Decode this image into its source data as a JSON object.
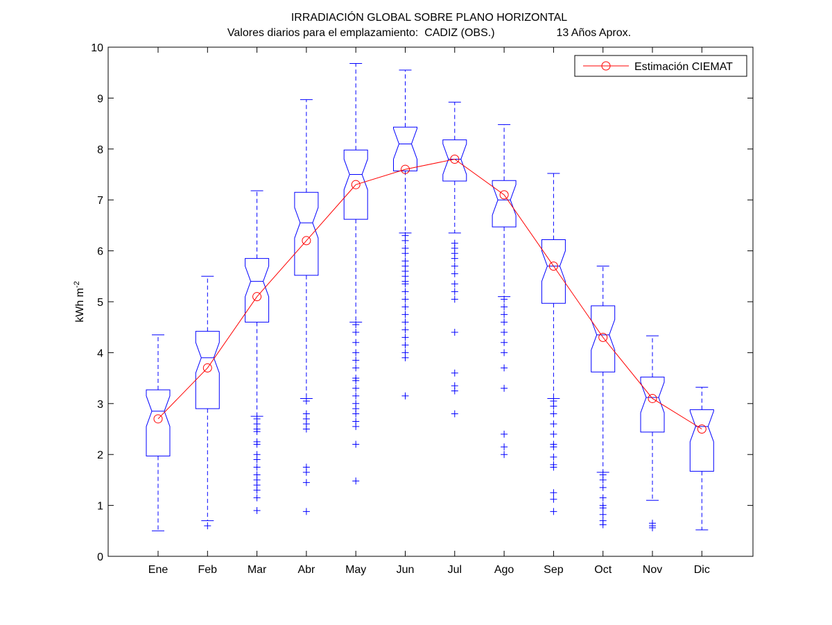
{
  "chart_data": {
    "type": "boxplot",
    "title": "IRRADIACIÓN GLOBAL SOBRE PLANO HORIZONTAL",
    "subtitle": "Valores diarios para el emplazamiento:  CADIZ (OBS.)                    13 Años Aprox.",
    "ylabel": "kWh m",
    "ylabel_superscript": "-2",
    "xlabel": "",
    "ylim": [
      0,
      10
    ],
    "yticks": [
      0,
      1,
      2,
      3,
      4,
      5,
      6,
      7,
      8,
      9,
      10
    ],
    "grid": false,
    "legend_position": "top-right",
    "categories": [
      "Ene",
      "Feb",
      "Mar",
      "Abr",
      "May",
      "Jun",
      "Jul",
      "Ago",
      "Sep",
      "Oct",
      "Nov",
      "Dic"
    ],
    "boxes": [
      {
        "whisker_low": 0.5,
        "q1": 1.97,
        "median": 2.85,
        "q3": 3.27,
        "whisker_high": 4.35,
        "outliers": []
      },
      {
        "whisker_low": 0.7,
        "q1": 2.9,
        "median": 3.9,
        "q3": 4.42,
        "whisker_high": 5.5,
        "outliers": [
          0.6
        ]
      },
      {
        "whisker_low": 2.75,
        "q1": 4.6,
        "median": 5.4,
        "q3": 5.85,
        "whisker_high": 7.18,
        "outliers": [
          2.7,
          2.6,
          2.5,
          2.45,
          2.25,
          2.2,
          2.0,
          1.9,
          1.75,
          1.6,
          1.5,
          1.4,
          1.3,
          1.15,
          0.9
        ]
      },
      {
        "whisker_low": 3.1,
        "q1": 5.52,
        "median": 6.55,
        "q3": 7.15,
        "whisker_high": 8.97,
        "outliers": [
          3.05,
          2.8,
          2.7,
          2.6,
          2.5,
          1.75,
          1.65,
          1.45,
          0.88
        ]
      },
      {
        "whisker_low": 4.6,
        "q1": 6.62,
        "median": 7.5,
        "q3": 7.98,
        "whisker_high": 9.68,
        "outliers": [
          4.55,
          4.4,
          4.2,
          4.0,
          3.85,
          3.7,
          3.5,
          3.45,
          3.3,
          3.15,
          3.0,
          2.9,
          2.8,
          2.65,
          2.55,
          2.2,
          1.48
        ]
      },
      {
        "whisker_low": 6.35,
        "q1": 7.57,
        "median": 8.1,
        "q3": 8.43,
        "whisker_high": 9.55,
        "outliers": [
          6.3,
          6.2,
          6.05,
          5.95,
          5.8,
          5.7,
          5.6,
          5.5,
          5.4,
          5.35,
          5.2,
          5.05,
          4.9,
          4.75,
          4.6,
          4.45,
          4.3,
          4.15,
          4.0,
          3.9,
          3.15
        ]
      },
      {
        "whisker_low": 6.35,
        "q1": 7.37,
        "median": 7.8,
        "q3": 8.18,
        "whisker_high": 8.92,
        "outliers": [
          6.15,
          6.05,
          5.95,
          5.85,
          5.7,
          5.55,
          5.35,
          5.2,
          5.05,
          4.4,
          3.6,
          3.35,
          3.25,
          2.8
        ]
      },
      {
        "whisker_low": 5.1,
        "q1": 6.47,
        "median": 7.0,
        "q3": 7.38,
        "whisker_high": 8.48,
        "outliers": [
          5.05,
          4.9,
          4.75,
          4.6,
          4.4,
          4.2,
          4.0,
          3.7,
          3.3,
          2.4,
          2.15,
          2.0
        ]
      },
      {
        "whisker_low": 3.1,
        "q1": 4.97,
        "median": 5.7,
        "q3": 6.22,
        "whisker_high": 7.52,
        "outliers": [
          3.05,
          2.95,
          2.8,
          2.6,
          2.4,
          2.2,
          2.15,
          1.95,
          1.8,
          1.75,
          1.25,
          1.12,
          0.88
        ]
      },
      {
        "whisker_low": 1.65,
        "q1": 3.62,
        "median": 4.35,
        "q3": 4.92,
        "whisker_high": 5.7,
        "outliers": [
          1.6,
          1.5,
          1.35,
          1.15,
          1.0,
          0.95,
          0.82,
          0.7,
          0.62
        ]
      },
      {
        "whisker_low": 1.1,
        "q1": 2.44,
        "median": 3.12,
        "q3": 3.52,
        "whisker_high": 4.33,
        "outliers": [
          0.65,
          0.6,
          0.56
        ]
      },
      {
        "whisker_low": 0.52,
        "q1": 1.67,
        "median": 2.55,
        "q3": 2.88,
        "whisker_high": 3.32,
        "outliers": []
      }
    ],
    "series": [
      {
        "name": "Estimación CIEMAT",
        "type": "line",
        "marker": "circle",
        "values": [
          2.7,
          3.7,
          5.1,
          6.2,
          7.3,
          7.6,
          7.8,
          7.1,
          5.7,
          4.3,
          3.1,
          2.5
        ]
      }
    ],
    "colors": {
      "box": "#0000ff",
      "estimate": "#ff0000",
      "axes": "#000000"
    }
  }
}
